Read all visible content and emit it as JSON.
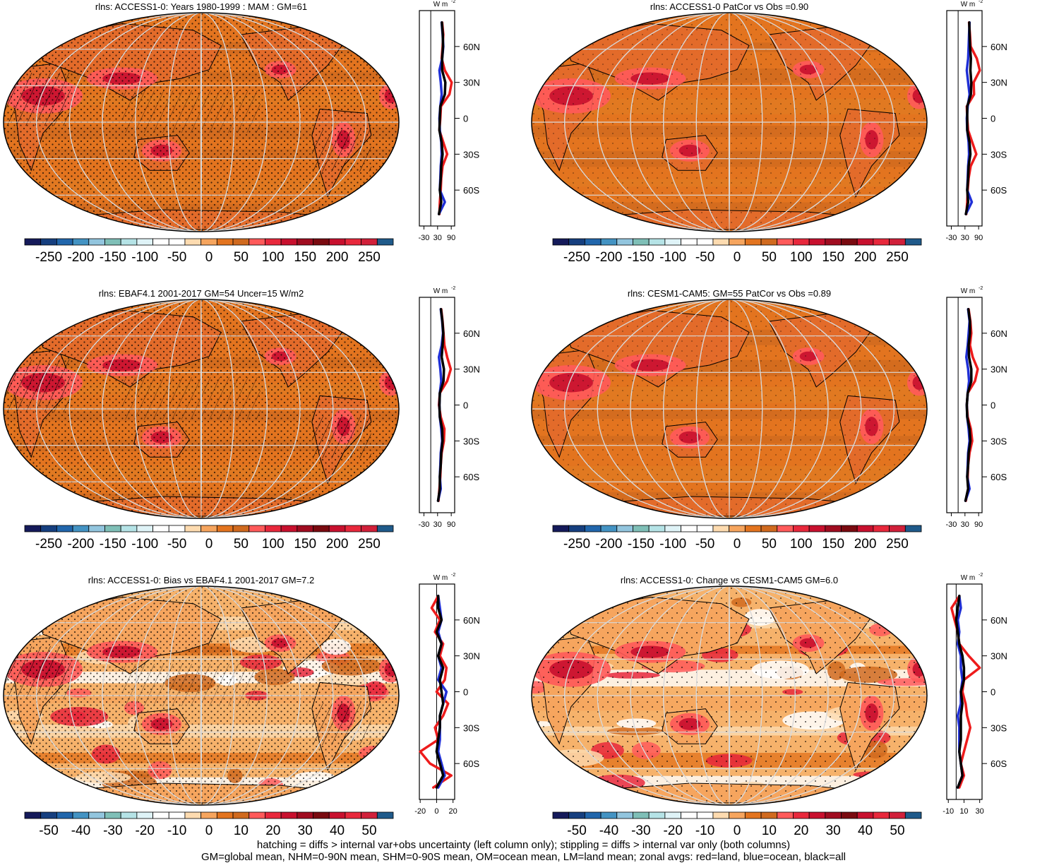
{
  "colors": {
    "scale": [
      "#151a5a",
      "#163f7f",
      "#2166ac",
      "#4393c3",
      "#92c5de",
      "#7fbfb7",
      "#b5e3e6",
      "#dff3f7",
      "#ffffff",
      "#ffffff",
      "#fddbb0",
      "#f6a55e",
      "#e3741f",
      "#d06a1f",
      "#ff5a5a",
      "#e8283c",
      "#c8102e",
      "#a00c20",
      "#7a0a10",
      "#c8102e",
      "#e8283c",
      "#d1203a",
      "#1f5a8a"
    ],
    "land_curve": "#ee1b1b",
    "ocean_curve": "#1f2fd6",
    "all_curve": "#000000",
    "grid": "#d9d9d9"
  },
  "chart_data": [
    {
      "type": "heatmap",
      "title": "rlns: ACCESS1-0: Years 1980-1999 : MAM : GM=61",
      "colorbar_labels": [
        "-250",
        "-200",
        "-150",
        "-100",
        "-50",
        "0",
        "50",
        "100",
        "150",
        "200",
        "250"
      ],
      "zonal": {
        "units": "W m",
        "units_sup": "-2",
        "xticks": [
          "-30",
          "30",
          "90"
        ],
        "xlim": [
          -50,
          105
        ],
        "ylabels": [
          "60N",
          "30N",
          "0",
          "30S",
          "60S"
        ],
        "ylim": [
          -90,
          90
        ],
        "lat": [
          80,
          70,
          60,
          50,
          40,
          30,
          20,
          10,
          0,
          -10,
          -20,
          -30,
          -40,
          -50,
          -60,
          -70,
          -80
        ],
        "land": [
          50,
          55,
          52,
          48,
          62,
          92,
          82,
          45,
          42,
          38,
          55,
          72,
          52,
          46,
          44,
          40,
          38
        ],
        "ocean": [
          48,
          52,
          55,
          50,
          38,
          44,
          48,
          42,
          38,
          40,
          46,
          48,
          44,
          42,
          40,
          62,
          36
        ],
        "all": [
          49,
          53,
          54,
          50,
          50,
          64,
          62,
          42,
          40,
          38,
          48,
          52,
          46,
          44,
          40,
          46,
          36
        ]
      }
    },
    {
      "type": "heatmap",
      "title": "rlns: ACCESS1-0 PatCor vs Obs =0.90",
      "colorbar_labels": [
        "-250",
        "-200",
        "-150",
        "-100",
        "-50",
        "0",
        "50",
        "100",
        "150",
        "200",
        "250"
      ],
      "zonal": {
        "units": "W m",
        "units_sup": "-2",
        "xticks": [
          "-30",
          "30",
          "90"
        ],
        "xlim": [
          -50,
          105
        ],
        "ylabels": [
          "60N",
          "30N",
          "0",
          "30S",
          "60S"
        ],
        "ylim": [
          -90,
          90
        ],
        "lat": [
          80,
          70,
          60,
          50,
          40,
          30,
          20,
          10,
          0,
          -10,
          -20,
          -30,
          -40,
          -50,
          -60,
          -70,
          -80
        ],
        "land": [
          48,
          52,
          55,
          82,
          95,
          68,
          70,
          38,
          40,
          44,
          62,
          80,
          55,
          46,
          42,
          40,
          36
        ],
        "ocean": [
          50,
          48,
          46,
          44,
          38,
          44,
          50,
          42,
          38,
          40,
          46,
          48,
          44,
          42,
          40,
          60,
          34
        ],
        "all": [
          49,
          50,
          52,
          56,
          54,
          58,
          56,
          40,
          40,
          40,
          50,
          54,
          46,
          44,
          40,
          44,
          34
        ]
      }
    },
    {
      "type": "heatmap",
      "title": "rlns: EBAF4.1 2001-2017 GM=54 Uncer=15 W/m2",
      "colorbar_labels": [
        "-250",
        "-200",
        "-150",
        "-100",
        "-50",
        "0",
        "50",
        "100",
        "150",
        "200",
        "250"
      ],
      "zonal": {
        "units": "W m",
        "units_sup": "-2",
        "xticks": [
          "-30",
          "30",
          "90"
        ],
        "xlim": [
          -50,
          105
        ],
        "ylabels": [
          "60N",
          "30N",
          "0",
          "30S",
          "60S"
        ],
        "ylim": [
          -90,
          90
        ],
        "lat": [
          80,
          70,
          60,
          50,
          40,
          30,
          20,
          10,
          0,
          -10,
          -20,
          -30,
          -40,
          -50,
          -60,
          -70,
          -80
        ],
        "land": [
          46,
          52,
          56,
          60,
          72,
          88,
          72,
          40,
          36,
          44,
          60,
          58,
          48,
          44,
          42,
          38,
          34
        ],
        "ocean": [
          44,
          50,
          54,
          48,
          36,
          42,
          46,
          40,
          38,
          40,
          46,
          50,
          44,
          42,
          40,
          44,
          32
        ],
        "all": [
          45,
          51,
          55,
          52,
          48,
          58,
          56,
          40,
          38,
          40,
          50,
          52,
          46,
          44,
          40,
          40,
          32
        ]
      }
    },
    {
      "type": "heatmap",
      "title": "rlns: CESM1-CAM5: GM=55 PatCor vs Obs =0.89",
      "colorbar_labels": [
        "-250",
        "-200",
        "-150",
        "-100",
        "-50",
        "0",
        "50",
        "100",
        "150",
        "200",
        "250"
      ],
      "zonal": {
        "units": "W m",
        "units_sup": "-2",
        "xticks": [
          "-30",
          "30",
          "90"
        ],
        "xlim": [
          -50,
          105
        ],
        "ylabels": [
          "60N",
          "30N",
          "0",
          "30S",
          "60S"
        ],
        "ylim": [
          -90,
          90
        ],
        "lat": [
          80,
          70,
          60,
          50,
          40,
          30,
          20,
          10,
          0,
          -10,
          -20,
          -30,
          -40,
          -50,
          -60,
          -70,
          -80
        ],
        "land": [
          46,
          54,
          58,
          52,
          64,
          86,
          74,
          42,
          38,
          42,
          56,
          62,
          50,
          44,
          42,
          44,
          34
        ],
        "ocean": [
          44,
          50,
          46,
          42,
          36,
          44,
          48,
          42,
          38,
          40,
          46,
          50,
          44,
          42,
          40,
          50,
          32
        ],
        "all": [
          45,
          52,
          52,
          46,
          48,
          58,
          58,
          42,
          38,
          40,
          50,
          54,
          46,
          44,
          40,
          44,
          32
        ]
      }
    },
    {
      "type": "heatmap",
      "title": "rlns: ACCESS1-0: Bias vs EBAF4.1 2001-2017 GM=7.2",
      "colorbar_labels": [
        "-50",
        "-40",
        "-30",
        "-20",
        "-10",
        "0",
        "10",
        "20",
        "30",
        "40",
        "50"
      ],
      "zonal": {
        "units": "W m",
        "units_sup": "-2",
        "xticks": [
          "-20",
          "0",
          "20"
        ],
        "xlim": [
          -21,
          22
        ],
        "ylabels": [
          "60N",
          "30N",
          "0",
          "30S",
          "60S"
        ],
        "ylim": [
          -90,
          90
        ],
        "lat": [
          80,
          70,
          60,
          50,
          40,
          30,
          20,
          10,
          0,
          -10,
          -20,
          -30,
          -40,
          -50,
          -60,
          -70,
          -80
        ],
        "land": [
          2,
          -6,
          4,
          -2,
          8,
          4,
          12,
          10,
          0,
          14,
          8,
          -2,
          2,
          -20,
          -8,
          18,
          -4
        ],
        "ocean": [
          2,
          4,
          6,
          2,
          6,
          2,
          6,
          2,
          12,
          8,
          4,
          4,
          4,
          2,
          6,
          10,
          2
        ],
        "all": [
          2,
          2,
          6,
          0,
          6,
          2,
          8,
          4,
          6,
          8,
          4,
          4,
          2,
          0,
          4,
          8,
          0
        ]
      }
    },
    {
      "type": "heatmap",
      "title": "rlns: ACCESS1-0: Change vs CESM1-CAM5 GM=6.0",
      "colorbar_labels": [
        "-50",
        "-40",
        "-30",
        "-20",
        "-10",
        "0",
        "10",
        "20",
        "30",
        "40",
        "50"
      ],
      "zonal": {
        "units": "W m",
        "units_sup": "-2",
        "xticks": [
          "-10",
          "10",
          "30"
        ],
        "xlim": [
          -12,
          33
        ],
        "ylabels": [
          "60N",
          "30N",
          "0",
          "30S",
          "60S"
        ],
        "ylim": [
          -90,
          90
        ],
        "lat": [
          80,
          70,
          60,
          50,
          40,
          30,
          20,
          10,
          0,
          -10,
          -20,
          -30,
          -40,
          -50,
          -60,
          -70,
          -80
        ],
        "land": [
          4,
          -6,
          -2,
          2,
          4,
          16,
          30,
          10,
          8,
          12,
          14,
          18,
          14,
          10,
          6,
          10,
          4
        ],
        "ocean": [
          4,
          6,
          2,
          4,
          2,
          6,
          6,
          8,
          6,
          6,
          2,
          4,
          4,
          4,
          6,
          8,
          2
        ],
        "all": [
          4,
          2,
          0,
          2,
          4,
          8,
          10,
          10,
          6,
          8,
          6,
          6,
          6,
          4,
          6,
          8,
          2
        ]
      }
    }
  ],
  "captions": {
    "line1": "hatching = diffs > internal var+obs uncertainty (left column only); stippling = diffs > internal var only (both columns)",
    "line2": "GM=global mean, NHM=0-90N mean, SHM=0-90S mean, OM=ocean mean, LM=land mean; zonal avgs: red=land, blue=ocean, black=all"
  }
}
